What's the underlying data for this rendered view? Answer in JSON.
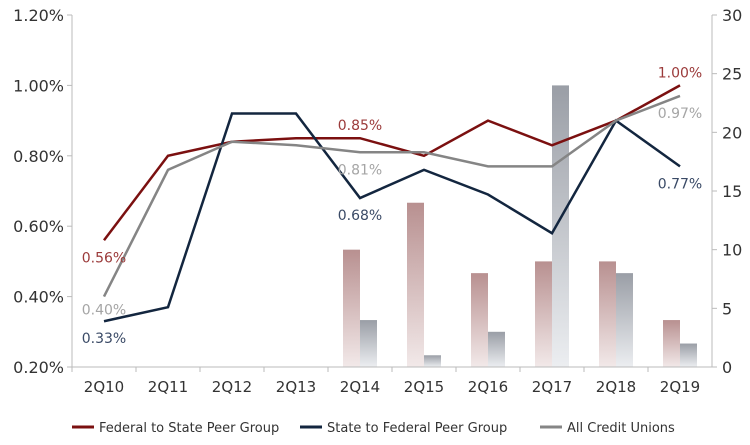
{
  "chart_data": {
    "type": "line",
    "categories": [
      "2Q10",
      "2Q11",
      "2Q12",
      "2Q13",
      "2Q14",
      "2Q15",
      "2Q16",
      "2Q17",
      "2Q18",
      "2Q19"
    ],
    "y_left": {
      "range": [
        0.2,
        1.2
      ],
      "ticks": [
        "0.20%",
        "0.40%",
        "0.60%",
        "0.80%",
        "1.00%",
        "1.20%"
      ],
      "tick_values": [
        0.2,
        0.4,
        0.6,
        0.8,
        1.0,
        1.2
      ]
    },
    "y_right": {
      "range": [
        0,
        30
      ],
      "ticks": [
        "0",
        "5",
        "10",
        "15",
        "20",
        "25",
        "30"
      ],
      "tick_values": [
        0,
        5,
        10,
        15,
        20,
        25,
        30
      ]
    },
    "series": [
      {
        "name": "Federal to State Peer Group",
        "color": "#7b1010",
        "values": [
          0.56,
          0.8,
          0.84,
          0.85,
          0.85,
          0.8,
          0.9,
          0.83,
          0.9,
          1.0
        ],
        "labels": [
          {
            "index": 0,
            "text": "0.56%",
            "pos": "below"
          },
          {
            "index": 4,
            "text": "0.85%",
            "pos": "above"
          },
          {
            "index": 9,
            "text": "1.00%",
            "pos": "above"
          }
        ]
      },
      {
        "name": "State to Federal Peer Group",
        "color": "#13263f",
        "values": [
          0.33,
          0.37,
          0.92,
          0.92,
          0.68,
          0.76,
          0.69,
          0.58,
          0.9,
          0.77
        ],
        "labels": [
          {
            "index": 0,
            "text": "0.33%",
            "pos": "below"
          },
          {
            "index": 4,
            "text": "0.68%",
            "pos": "below"
          },
          {
            "index": 9,
            "text": "0.77%",
            "pos": "below"
          }
        ]
      },
      {
        "name": "All Credit Unions",
        "color": "#858585",
        "values": [
          0.4,
          0.76,
          0.84,
          0.83,
          0.81,
          0.81,
          0.77,
          0.77,
          0.9,
          0.97
        ],
        "labels": [
          {
            "index": 0,
            "text": "0.40%",
            "pos": "right"
          },
          {
            "index": 4,
            "text": "0.81%",
            "pos": "below"
          },
          {
            "index": 9,
            "text": "0.97%",
            "pos": "below"
          }
        ]
      }
    ],
    "bar_series": [
      {
        "axis": "right",
        "color": "#b89090",
        "values": [
          null,
          null,
          null,
          null,
          10,
          14,
          8,
          9,
          9,
          4
        ]
      },
      {
        "axis": "right",
        "color": "#9a9ea6",
        "values": [
          null,
          null,
          null,
          null,
          4,
          1,
          3,
          24,
          8,
          2
        ]
      }
    ],
    "legend": "bottom"
  }
}
